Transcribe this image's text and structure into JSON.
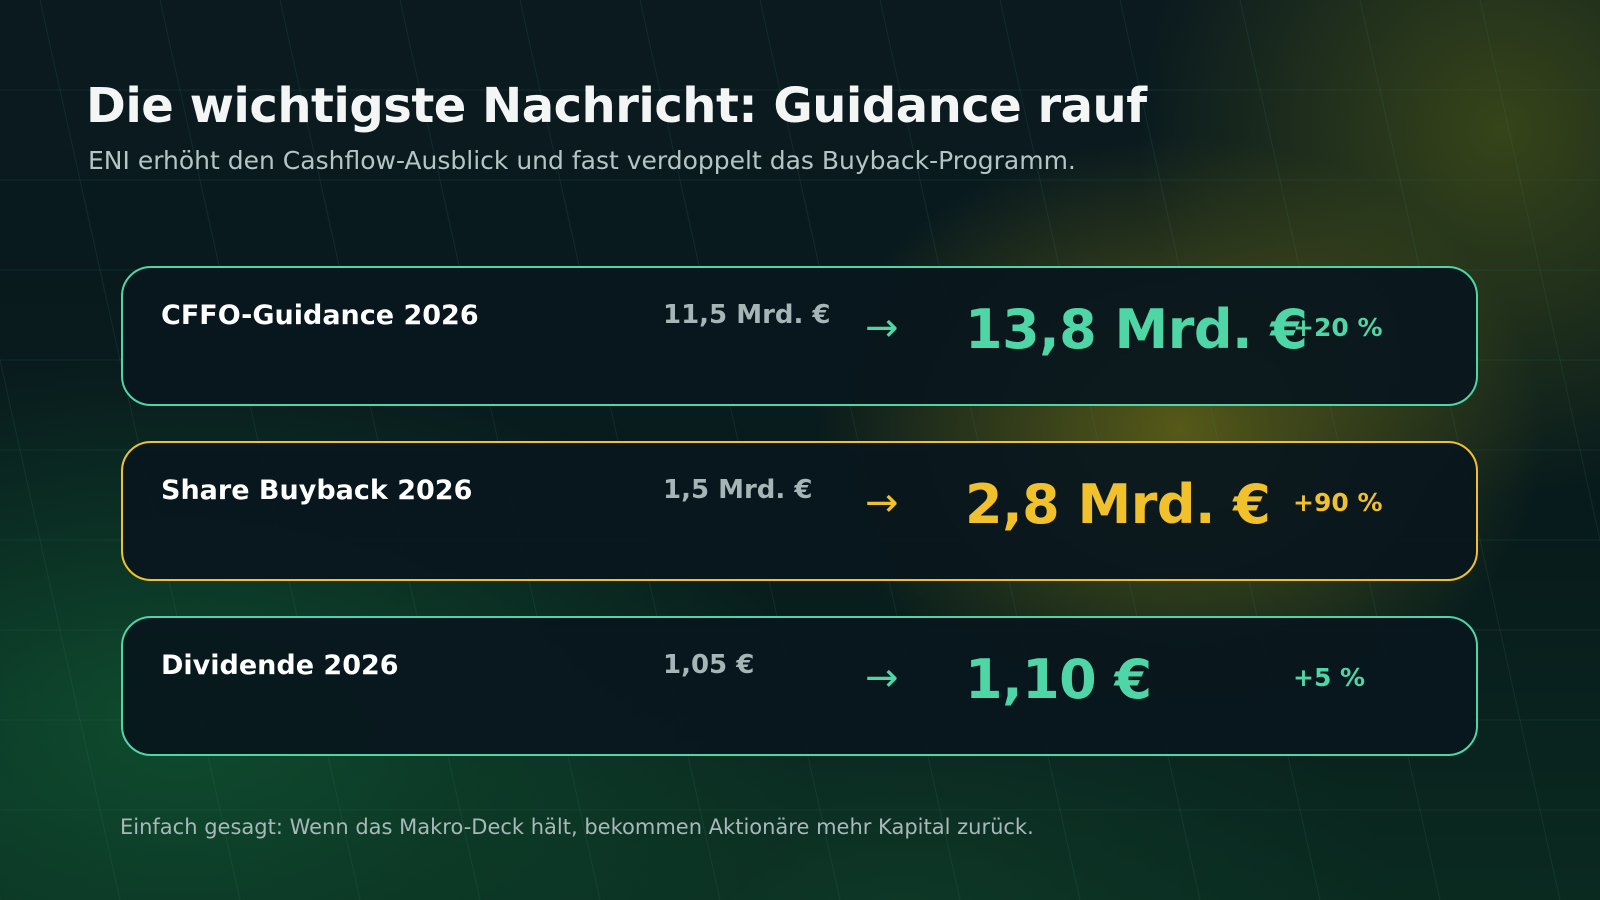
{
  "header": {
    "title": "Die wichtigste Nachricht: Guidance rauf",
    "subtitle": "ENI erhöht den Cashflow-Ausblick und fast verdoppelt das Buyback-Programm."
  },
  "cards": [
    {
      "label": "CFFO-Guidance 2026",
      "old_value": "11,5 Mrd. €",
      "arrow": "→",
      "new_value": "13,8 Mrd. €",
      "change": "+20 %",
      "accent": "#4fd6a6"
    },
    {
      "label": "Share Buyback 2026",
      "old_value": "1,5 Mrd. €",
      "arrow": "→",
      "new_value": "2,8 Mrd. €",
      "change": "+90 %",
      "accent": "#f1c12b"
    },
    {
      "label": "Dividende 2026",
      "old_value": "1,05 €",
      "arrow": "→",
      "new_value": "1,10 €",
      "change": "+5 %",
      "accent": "#4fd6a6"
    }
  ],
  "footer": {
    "note": "Einfach gesagt: Wenn das Makro-Deck hält, bekommen Aktionäre mehr Kapital zurück."
  },
  "colors": {
    "background": "#07121a",
    "accent_green": "#4fd6a6",
    "accent_gold": "#f1c12b",
    "text": "#f4f6f6",
    "muted": "#a6b6b6"
  }
}
